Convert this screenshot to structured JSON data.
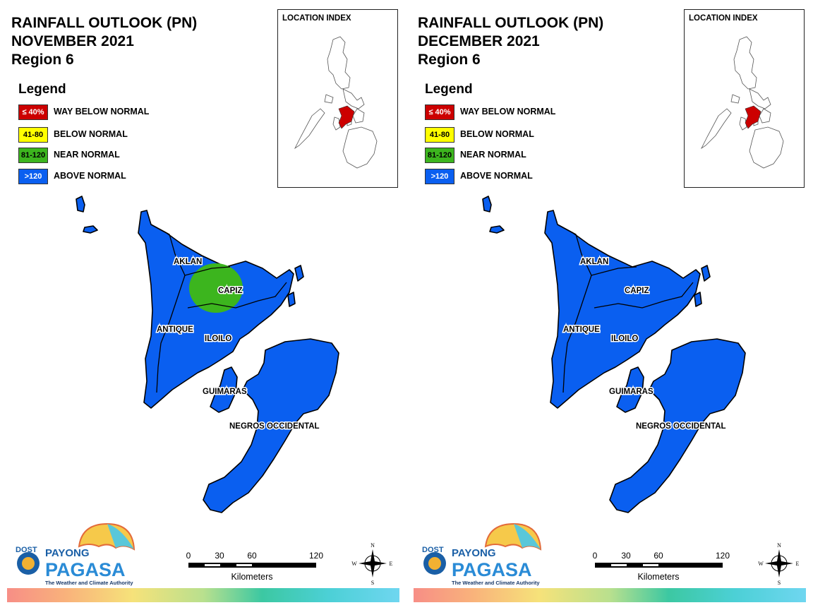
{
  "colors": {
    "way_below": "#cc0000",
    "below": "#ffff00",
    "near": "#3cb51e",
    "above": "#0a5ff0"
  },
  "legend": {
    "title": "Legend",
    "items": [
      {
        "range": "≤ 40%",
        "label": "WAY BELOW NORMAL",
        "color": "#cc0000",
        "text_color": "#ffffff"
      },
      {
        "range": "41-80",
        "label": "BELOW NORMAL",
        "color": "#ffff00",
        "text_color": "#000000"
      },
      {
        "range": "81-120",
        "label": "NEAR NORMAL",
        "color": "#3cb51e",
        "text_color": "#000000"
      },
      {
        "range": ">120",
        "label": "ABOVE NORMAL",
        "color": "#0a5ff0",
        "text_color": "#ffffff"
      }
    ]
  },
  "location_index": {
    "title": "LOCATION INDEX"
  },
  "provinces": {
    "aklan": "AKLAN",
    "capiz": "CAPIZ",
    "antique": "ANTIQUE",
    "iloilo": "ILOILO",
    "guimaras": "GUIMARAS",
    "negros": "NEGROS OCCIDENTAL"
  },
  "scale": {
    "ticks": [
      "0",
      "30",
      "60",
      "120"
    ],
    "unit": "Kilometers"
  },
  "compass": {
    "n": "N",
    "s": "S",
    "e": "E",
    "w": "W"
  },
  "logo": {
    "dost": "DOST",
    "payong": "PAYONG",
    "pagasa": "PAGASA",
    "tagline": "The Weather and Climate Authority"
  },
  "panels": [
    {
      "title_line1": "RAINFALL OUTLOOK (PN)",
      "title_line2": "NOVEMBER 2021",
      "title_line3": "Region 6",
      "near_normal_area": "Capiz"
    },
    {
      "title_line1": "RAINFALL OUTLOOK (PN)",
      "title_line2": "DECEMBER 2021",
      "title_line3": "Region 6",
      "near_normal_area": ""
    }
  ]
}
